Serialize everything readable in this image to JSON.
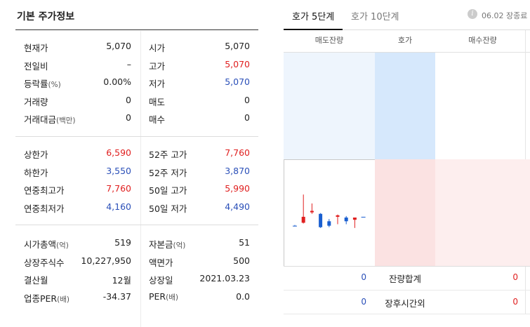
{
  "left": {
    "title": "기본 주가정보",
    "rows1": [
      {
        "l1": "현재가",
        "l1s": "",
        "v1": "5,070",
        "c1": "",
        "l2": "시가",
        "l2s": "",
        "v2": "5,070",
        "c2": ""
      },
      {
        "l1": "전일비",
        "l1s": "",
        "v1": "–",
        "c1": "",
        "l2": "고가",
        "l2s": "",
        "v2": "5,070",
        "c2": "red"
      },
      {
        "l1": "등락률",
        "l1s": "(%)",
        "v1": "0.00%",
        "c1": "",
        "l2": "저가",
        "l2s": "",
        "v2": "5,070",
        "c2": "blue"
      },
      {
        "l1": "거래량",
        "l1s": "",
        "v1": "0",
        "c1": "",
        "l2": "매도",
        "l2s": "",
        "v2": "0",
        "c2": ""
      },
      {
        "l1": "거래대금",
        "l1s": "(백만)",
        "v1": "0",
        "c1": "",
        "l2": "매수",
        "l2s": "",
        "v2": "0",
        "c2": ""
      }
    ],
    "rows2": [
      {
        "l1": "상한가",
        "l1s": "",
        "v1": "6,590",
        "c1": "red",
        "l2": "52주 고가",
        "l2s": "",
        "v2": "7,760",
        "c2": "red"
      },
      {
        "l1": "하한가",
        "l1s": "",
        "v1": "3,550",
        "c1": "blue",
        "l2": "52주 저가",
        "l2s": "",
        "v2": "3,870",
        "c2": "blue"
      },
      {
        "l1": "연중최고가",
        "l1s": "",
        "v1": "7,760",
        "c1": "red",
        "l2": "50일 고가",
        "l2s": "",
        "v2": "5,990",
        "c2": "red"
      },
      {
        "l1": "연중최저가",
        "l1s": "",
        "v1": "4,160",
        "c1": "blue",
        "l2": "50일 저가",
        "l2s": "",
        "v2": "4,490",
        "c2": "blue"
      }
    ],
    "rows3": [
      {
        "l1": "시가총액",
        "l1s": "(억)",
        "v1": "519",
        "c1": "",
        "l2": "자본금",
        "l2s": "(억)",
        "v2": "51",
        "c2": ""
      },
      {
        "l1": "상장주식수",
        "l1s": "",
        "v1": "10,227,950",
        "c1": "",
        "l2": "액면가",
        "l2s": "",
        "v2": "500",
        "c2": ""
      },
      {
        "l1": "결산월",
        "l1s": "",
        "v1": "12월",
        "c1": "",
        "l2": "상장일",
        "l2s": "",
        "v2": "2021.03.23",
        "c2": ""
      },
      {
        "l1": "업종PER",
        "l1s": "(배)",
        "v1": "-34.37",
        "c1": "",
        "l2": "PER",
        "l2s": "(배)",
        "v2": "0.0",
        "c2": ""
      }
    ]
  },
  "right": {
    "tabs": [
      "호가 5단계",
      "호가 10단계"
    ],
    "info_icon": "i",
    "date_text": "06.02 장종료",
    "headers": [
      "매도잔량",
      "호가",
      "매수잔량"
    ],
    "summary": [
      {
        "left": "0",
        "label": "잔량합계",
        "right": "0"
      },
      {
        "left": "0",
        "label": "장후시간외",
        "right": "0"
      }
    ]
  },
  "mini_candles": [
    {
      "o": 4300,
      "c": 4300,
      "h": 4350,
      "l": 4250,
      "dir": "flat"
    },
    {
      "o": 4500,
      "c": 4900,
      "h": 6400,
      "l": 4450,
      "dir": "up"
    },
    {
      "o": 5200,
      "c": 5300,
      "h": 5800,
      "l": 5100,
      "dir": "up"
    },
    {
      "o": 5100,
      "c": 4200,
      "h": 5150,
      "l": 4150,
      "dir": "down"
    },
    {
      "o": 4600,
      "c": 4300,
      "h": 4750,
      "l": 4200,
      "dir": "down"
    },
    {
      "o": 4900,
      "c": 5000,
      "h": 5050,
      "l": 4400,
      "dir": "up"
    },
    {
      "o": 4850,
      "c": 4600,
      "h": 4950,
      "l": 4400,
      "dir": "down"
    },
    {
      "o": 4700,
      "c": 4850,
      "h": 4850,
      "l": 4150,
      "dir": "up"
    },
    {
      "o": 4900,
      "c": 4900,
      "h": 4900,
      "l": 4900,
      "dir": "flat"
    }
  ],
  "colors": {
    "up": "#e02020",
    "down": "#1a5fd0",
    "flat": "#1a5fd0",
    "ask_bg": "#eaf3fd",
    "ask_mid": "#d4e6fc",
    "bid_bg": "#fdeeee",
    "bid_mid": "#fbe0e0"
  }
}
